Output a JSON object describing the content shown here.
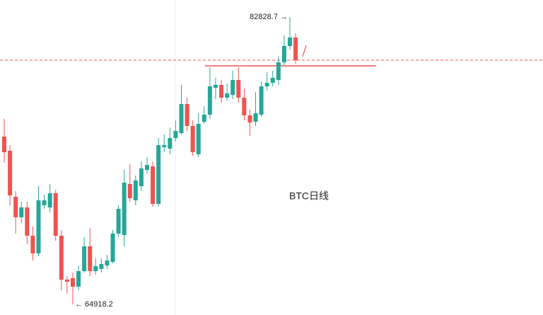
{
  "chart_data": {
    "type": "candlestick",
    "title": "BTC日线",
    "up_color": "#26a69a",
    "down_color": "#ef5350",
    "ylim": [
      64259,
      83887
    ],
    "ohlc_fields": [
      "open",
      "high",
      "low",
      "close"
    ],
    "ohlc": [
      [
        75374,
        76477,
        73742,
        74403
      ],
      [
        74492,
        74844,
        71095,
        71713
      ],
      [
        71624,
        71977,
        69331,
        70345
      ],
      [
        70345,
        71316,
        69992,
        70963
      ],
      [
        70963,
        71316,
        68669,
        69198
      ],
      [
        69198,
        69772,
        67655,
        68096
      ],
      [
        68096,
        72286,
        67919,
        71404
      ],
      [
        71095,
        71757,
        70875,
        71404
      ],
      [
        70963,
        72418,
        70654,
        71845
      ],
      [
        71845,
        72066,
        68890,
        69198
      ],
      [
        69198,
        69551,
        65802,
        66464
      ],
      [
        66464,
        66684,
        65581,
        66331
      ],
      [
        66552,
        66905,
        64918.2,
        66022
      ],
      [
        66022,
        67346,
        65802,
        66993
      ],
      [
        66993,
        69110,
        66905,
        68537
      ],
      [
        68537,
        69684,
        66684,
        66993
      ],
      [
        66993,
        67787,
        66772,
        67302
      ],
      [
        67125,
        67787,
        66905,
        67434
      ],
      [
        67346,
        68007,
        67125,
        67655
      ],
      [
        67566,
        69551,
        67478,
        69331
      ],
      [
        69331,
        71095,
        69110,
        70875
      ],
      [
        69242,
        73301,
        68537,
        72507
      ],
      [
        72418,
        73653,
        71316,
        71536
      ],
      [
        71404,
        72948,
        71095,
        72639
      ],
      [
        72286,
        73830,
        71977,
        73389
      ],
      [
        73301,
        74095,
        73080,
        73609
      ],
      [
        73521,
        73830,
        71007,
        71183
      ],
      [
        71183,
        75286,
        71007,
        74844
      ],
      [
        74712,
        75506,
        74403,
        74844
      ],
      [
        74624,
        75947,
        74271,
        75286
      ],
      [
        75286,
        76388,
        75065,
        75727
      ],
      [
        75594,
        78594,
        75506,
        77403
      ],
      [
        77403,
        77800,
        75727,
        76035
      ],
      [
        76035,
        76388,
        74183,
        74403
      ],
      [
        74271,
        76829,
        74095,
        76168
      ],
      [
        76300,
        77270,
        76168,
        76741
      ],
      [
        76741,
        79697,
        76477,
        78506
      ],
      [
        78417,
        79035,
        77712,
        78594
      ],
      [
        78594,
        78903,
        77491,
        77800
      ],
      [
        77800,
        78682,
        77623,
        78064
      ],
      [
        77976,
        79476,
        77712,
        78903
      ],
      [
        78903,
        79697,
        77491,
        77800
      ],
      [
        77800,
        78373,
        76388,
        76697
      ],
      [
        76697,
        77050,
        75418,
        76256
      ],
      [
        76300,
        78153,
        76035,
        76829
      ],
      [
        76741,
        78814,
        76609,
        78506
      ],
      [
        78506,
        79388,
        78241,
        78726
      ],
      [
        78726,
        79476,
        78506,
        79035
      ],
      [
        78903,
        80358,
        78594,
        80005
      ],
      [
        80005,
        81681,
        79829,
        81020
      ],
      [
        81020,
        82828.7,
        80799,
        81549
      ],
      [
        81549,
        81814,
        79917,
        80138
      ]
    ],
    "high_label": "82828.7 →",
    "low_label": "← 64918.2",
    "reference_lines": [
      {
        "value": 80138,
        "style": "dashed"
      },
      {
        "value": 79785,
        "style": "solid"
      }
    ]
  }
}
